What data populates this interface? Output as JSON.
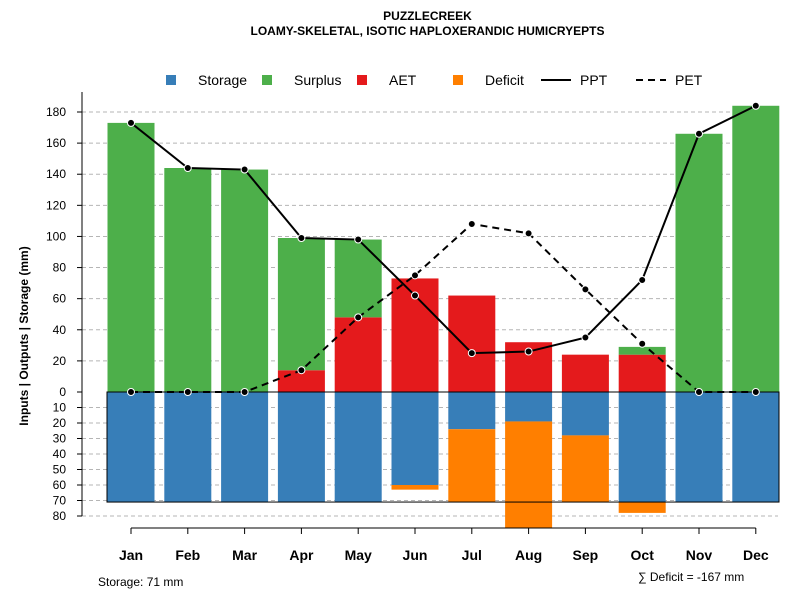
{
  "chart_data": {
    "type": "bar",
    "title": "PUZZLECREEK",
    "subtitle": "LOAMY-SKELETAL, ISOTIC HAPLOXERANDIC HUMICRYEPTS",
    "ylabel": "Inputs | Outputs | Storage    (mm)",
    "categories": [
      "Jan",
      "Feb",
      "Mar",
      "Apr",
      "May",
      "Jun",
      "Jul",
      "Aug",
      "Sep",
      "Oct",
      "Nov",
      "Dec"
    ],
    "legend": [
      "Storage",
      "Surplus",
      "AET",
      "Deficit",
      "PPT",
      "PET"
    ],
    "legend_position": "top",
    "colors": {
      "storage": "#377EB8",
      "surplus": "#4DAF4A",
      "aet": "#E41A1C",
      "deficit": "#FF7F00",
      "ppt": "#000000",
      "pet": "#000000"
    },
    "upper_ticks": [
      "0",
      "20",
      "40",
      "60",
      "80",
      "100",
      "120",
      "140",
      "160",
      "180"
    ],
    "lower_ticks": [
      "10",
      "20",
      "30",
      "40",
      "50",
      "60",
      "70",
      "80"
    ],
    "ylim_upper": [
      0,
      190
    ],
    "ylim_lower": [
      0,
      80
    ],
    "series": [
      {
        "name": "AET",
        "values": [
          0,
          0,
          0,
          14,
          48,
          73,
          62,
          32,
          24,
          24,
          0,
          0
        ]
      },
      {
        "name": "Surplus",
        "values": [
          173,
          144,
          143,
          85,
          50,
          0,
          0,
          0,
          0,
          5,
          166,
          184
        ]
      },
      {
        "name": "Storage",
        "values": [
          71,
          71,
          71,
          71,
          71,
          60,
          24,
          19,
          28,
          71,
          71,
          71
        ]
      },
      {
        "name": "Deficit",
        "values": [
          0,
          0,
          0,
          0,
          0,
          3,
          47,
          69,
          43,
          7,
          0,
          0
        ]
      },
      {
        "name": "PPT",
        "values": [
          173,
          144,
          143,
          99,
          98,
          62,
          25,
          26,
          35,
          72,
          166,
          184
        ]
      },
      {
        "name": "PET",
        "values": [
          0,
          0,
          0,
          14,
          48,
          75,
          108,
          102,
          66,
          31,
          0,
          0
        ]
      }
    ],
    "storage_capacity": 71
  },
  "footer": {
    "storage_text": "Storage: 71 mm",
    "deficit_text": "∑ Deficit = -167 mm"
  }
}
